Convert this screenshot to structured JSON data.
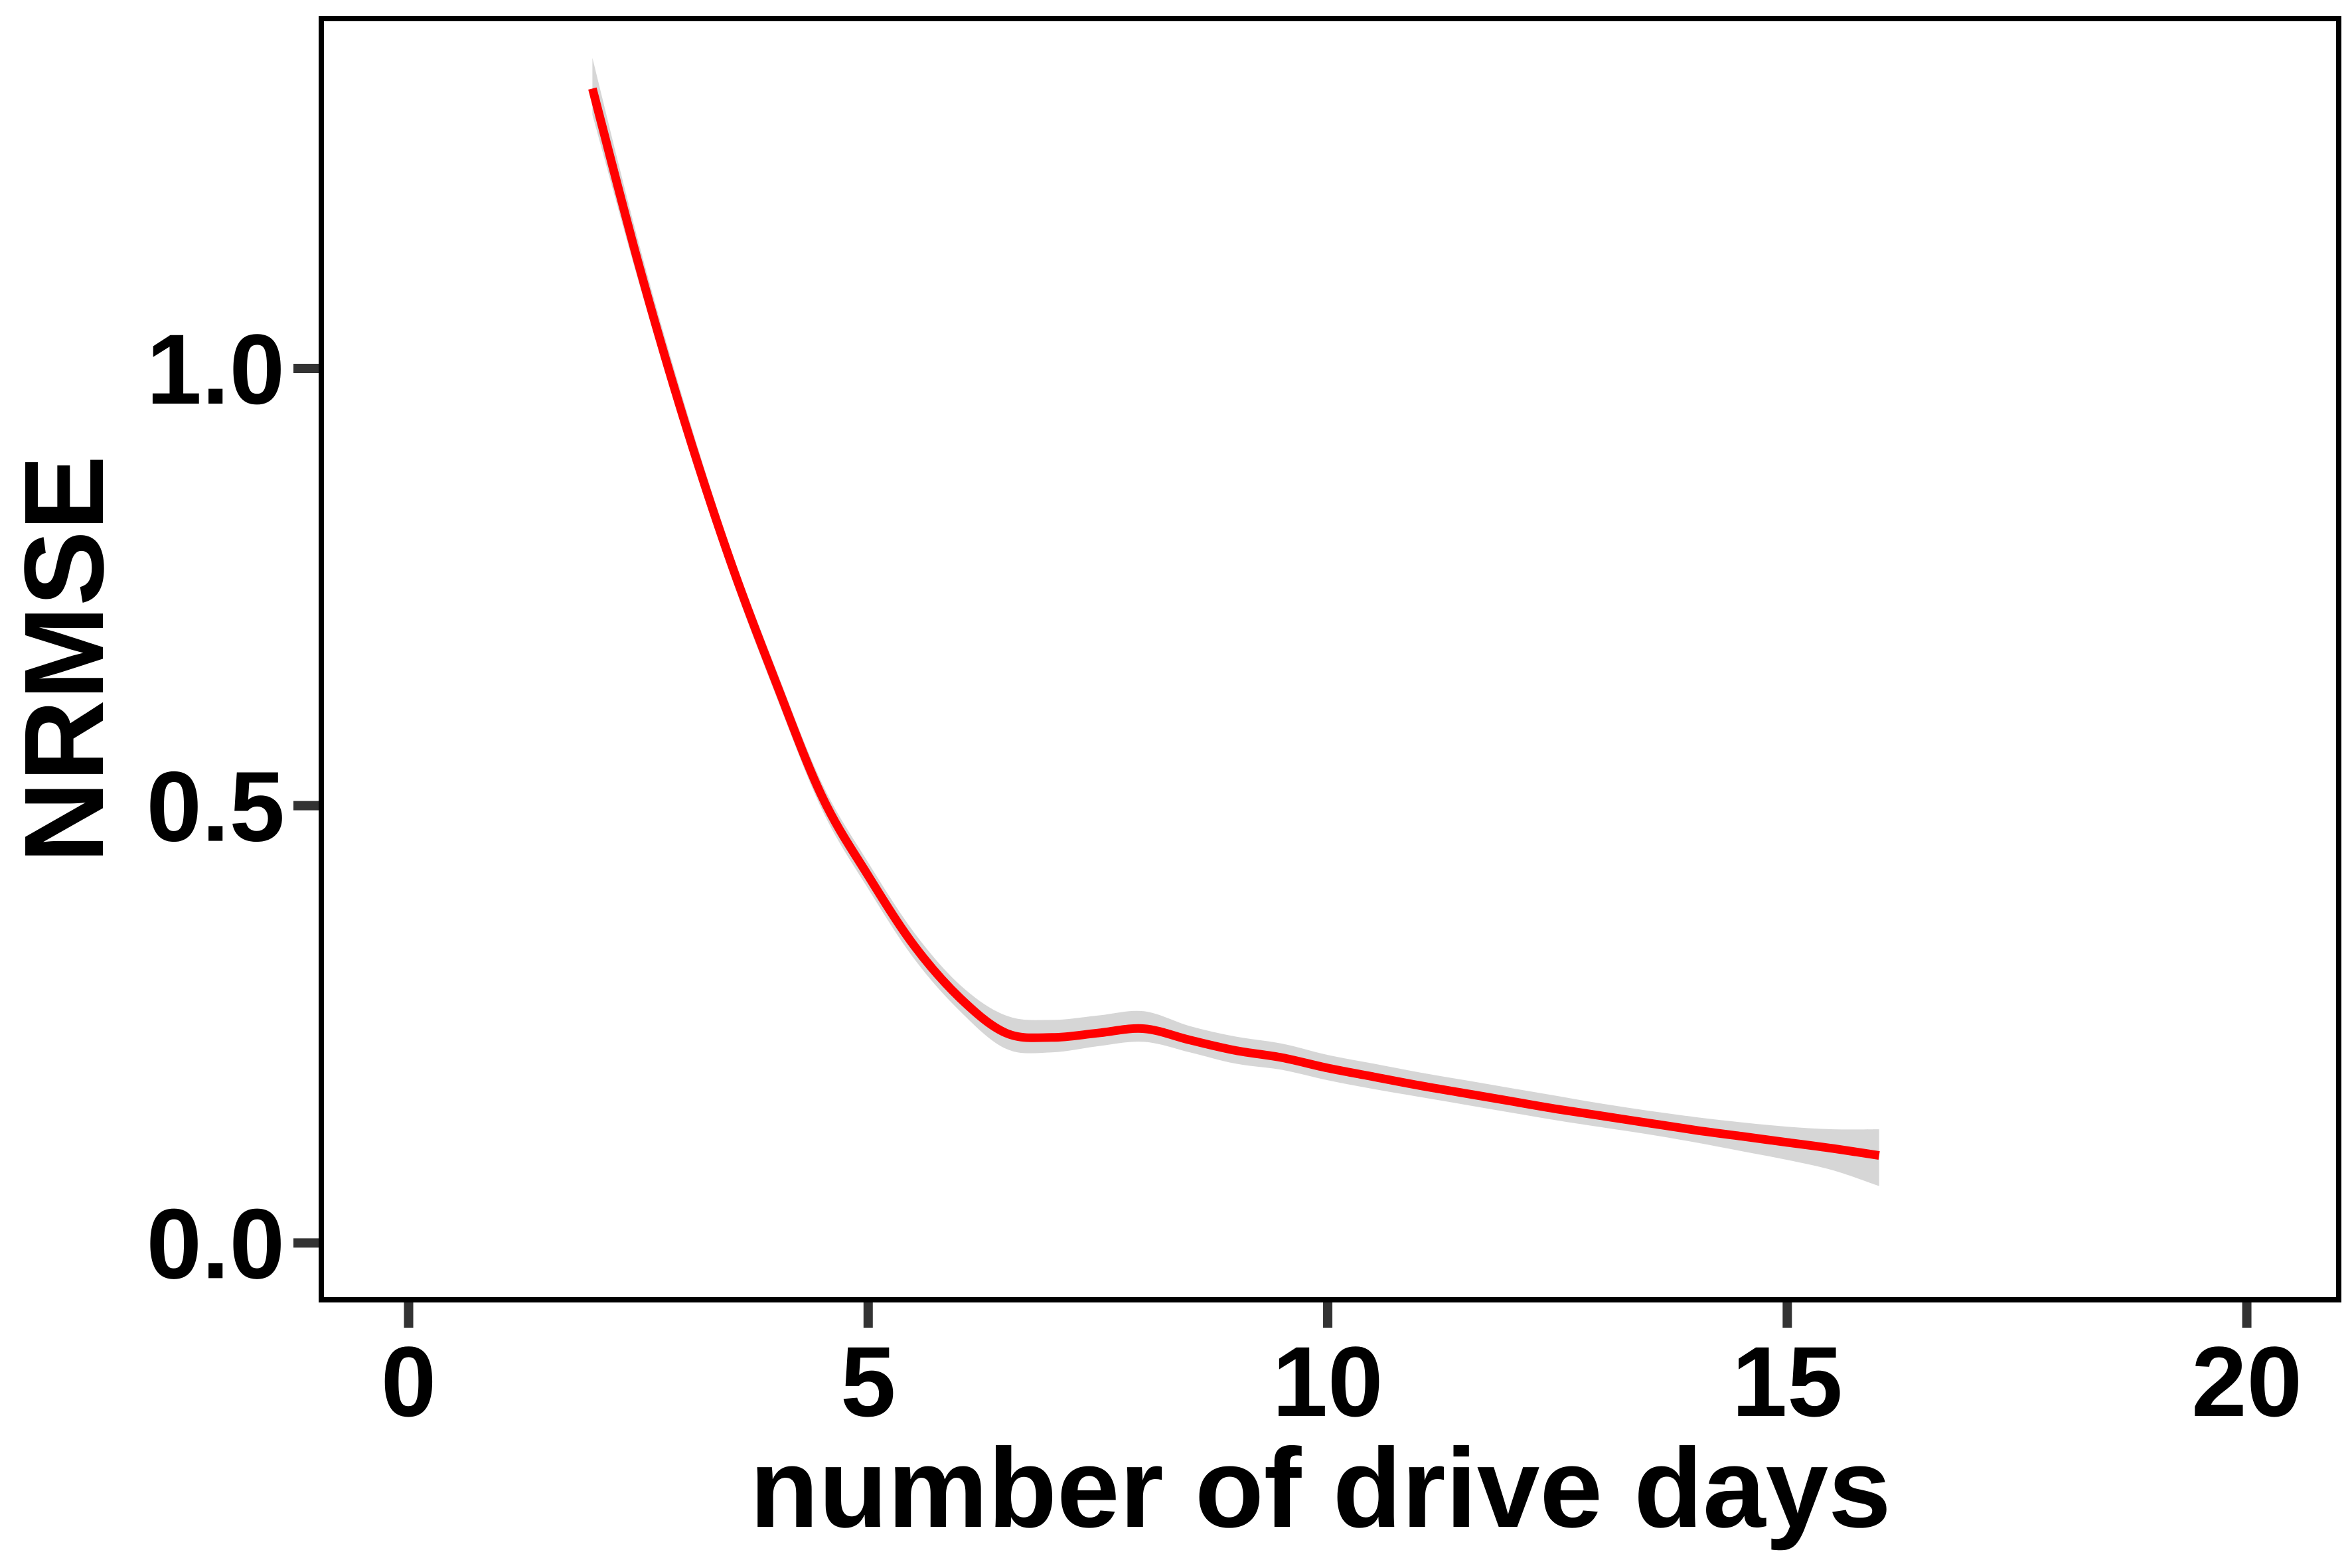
{
  "chart_data": {
    "type": "line",
    "xlabel": "number of drive days",
    "ylabel": "NRMSE",
    "xlim": [
      -0.95,
      21.0
    ],
    "ylim": [
      -0.065,
      1.4
    ],
    "x_ticks": [
      0,
      5,
      10,
      15,
      20
    ],
    "x_tick_labels": [
      "0",
      "5",
      "10",
      "15",
      "20"
    ],
    "y_ticks": [
      0.0,
      0.5,
      1.0
    ],
    "y_tick_labels": [
      "0.0",
      "0.5",
      "1.0"
    ],
    "grid": false,
    "legend": "none",
    "series": [
      {
        "color": "#ff0000",
        "x": [
          2,
          2.5,
          3,
          3.5,
          4,
          4.5,
          5,
          5.5,
          6,
          6.5,
          7,
          7.5,
          8,
          8.5,
          9,
          9.5,
          10,
          10.5,
          11,
          11.5,
          12,
          12.5,
          13,
          13.5,
          14,
          14.5,
          15,
          15.5,
          16
        ],
        "y": [
          1.32,
          1.12,
          0.94,
          0.78,
          0.64,
          0.51,
          0.42,
          0.34,
          0.28,
          0.24,
          0.235,
          0.24,
          0.245,
          0.232,
          0.22,
          0.212,
          0.2,
          0.19,
          0.18,
          0.171,
          0.162,
          0.153,
          0.145,
          0.137,
          0.129,
          0.122,
          0.115,
          0.108,
          0.1
        ],
        "ci_lower": [
          1.29,
          1.1,
          0.925,
          0.765,
          0.625,
          0.495,
          0.405,
          0.325,
          0.265,
          0.222,
          0.218,
          0.225,
          0.23,
          0.218,
          0.205,
          0.198,
          0.186,
          0.176,
          0.167,
          0.158,
          0.149,
          0.14,
          0.132,
          0.124,
          0.115,
          0.105,
          0.095,
          0.083,
          0.065
        ],
        "ci_upper": [
          1.355,
          1.145,
          0.96,
          0.795,
          0.655,
          0.525,
          0.435,
          0.355,
          0.295,
          0.26,
          0.255,
          0.26,
          0.265,
          0.248,
          0.236,
          0.228,
          0.215,
          0.205,
          0.195,
          0.186,
          0.177,
          0.168,
          0.159,
          0.151,
          0.144,
          0.138,
          0.133,
          0.13,
          0.13
        ]
      }
    ]
  }
}
